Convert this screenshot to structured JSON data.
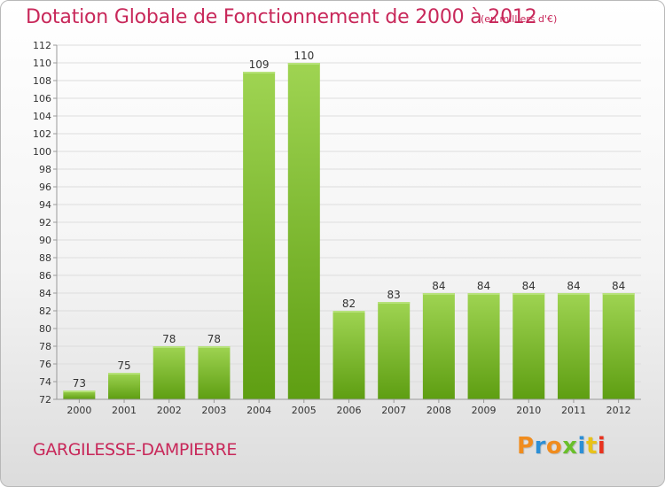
{
  "header": {
    "title": "Dotation Globale de Fonctionnement de 2000 à 2012",
    "subtitle": "(en milliers d'€)"
  },
  "footer": {
    "commune": "GARGILESSE-DAMPIERRE",
    "brand": "Proxiti"
  },
  "colors": {
    "accent": "#c8285a",
    "bar_top": "#9fd452",
    "bar_bottom": "#5e9e12",
    "brand_letters": [
      "#f08c1e",
      "#2c8fd6",
      "#f08c1e",
      "#6abf2b",
      "#2c8fd6",
      "#e8c21a",
      "#e8321e"
    ]
  },
  "chart_data": {
    "type": "bar",
    "title": "Dotation Globale de Fonctionnement de 2000 à 2012",
    "subtitle": "(en milliers d'€)",
    "xlabel": "",
    "ylabel": "",
    "categories": [
      "2000",
      "2001",
      "2002",
      "2003",
      "2004",
      "2005",
      "2006",
      "2007",
      "2008",
      "2009",
      "2010",
      "2011",
      "2012"
    ],
    "values": [
      73,
      75,
      78,
      78,
      109,
      110,
      82,
      83,
      84,
      84,
      84,
      84,
      84
    ],
    "ylim": [
      72,
      112
    ],
    "yticks": [
      72,
      74,
      76,
      78,
      80,
      82,
      84,
      86,
      88,
      90,
      92,
      94,
      96,
      98,
      100,
      102,
      104,
      106,
      108,
      110,
      112
    ],
    "grid": true,
    "legend": "none",
    "data_labels": true
  }
}
